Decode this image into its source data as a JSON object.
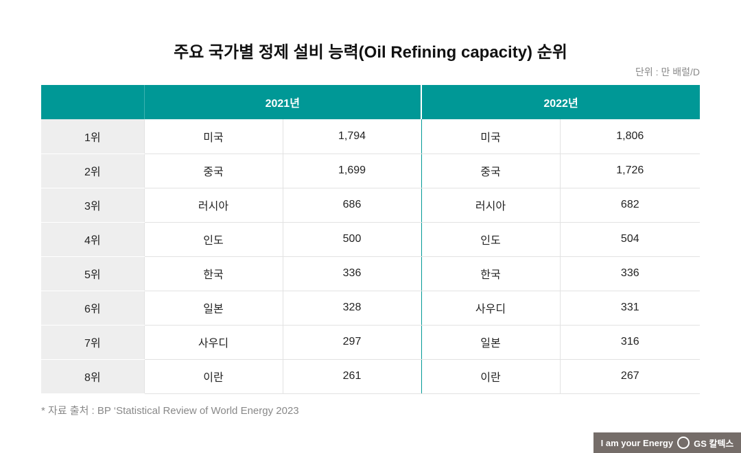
{
  "title": "주요 국가별 정제 설비 능력(Oil Refining capacity) 순위",
  "unit": "단위 : 만 배럴/D",
  "headers": {
    "blank": "",
    "y2021": "2021년",
    "y2022": "2022년"
  },
  "rows": [
    {
      "rank": "1위",
      "c2021": "미국",
      "v2021": "1,794",
      "c2022": "미국",
      "v2022": "1,806"
    },
    {
      "rank": "2위",
      "c2021": "중국",
      "v2021": "1,699",
      "c2022": "중국",
      "v2022": "1,726"
    },
    {
      "rank": "3위",
      "c2021": "러시아",
      "v2021": "686",
      "c2022": "러시아",
      "v2022": "682"
    },
    {
      "rank": "4위",
      "c2021": "인도",
      "v2021": "500",
      "c2022": "인도",
      "v2022": "504"
    },
    {
      "rank": "5위",
      "c2021": "한국",
      "v2021": "336",
      "c2022": "한국",
      "v2022": "336"
    },
    {
      "rank": "6위",
      "c2021": "일본",
      "v2021": "328",
      "c2022": "사우디",
      "v2022": "331"
    },
    {
      "rank": "7위",
      "c2021": "사우디",
      "v2021": "297",
      "c2022": "일본",
      "v2022": "316"
    },
    {
      "rank": "8위",
      "c2021": "이란",
      "v2021": "261",
      "c2022": "이란",
      "v2022": "267"
    }
  ],
  "source": "* 자료 출처 : BP ‘Statistical Review of World Energy 2023",
  "footer": {
    "slogan": "I am your Energy",
    "brand": "GS 칼텍스"
  },
  "colors": {
    "header": "#009896",
    "rank_bg": "#eeeeee",
    "footer_bg": "#756d69"
  }
}
